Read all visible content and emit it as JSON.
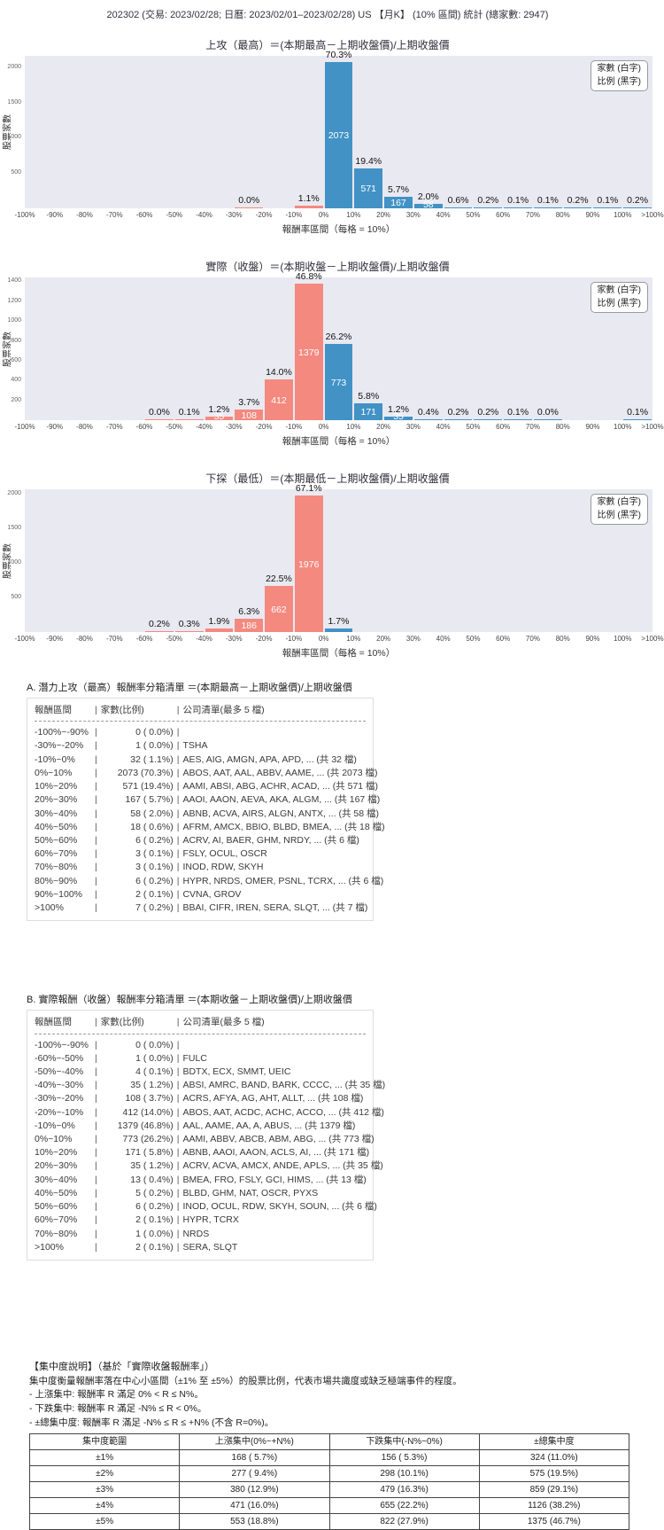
{
  "page_title": "202302 (交易: 2023/02/28; 日曆: 2023/02/01–2023/02/28) US 【月K】 (10% 區間) 統計 (總家數: 2947)",
  "colors": {
    "up_bar": "#4292c5",
    "down_bar": "#f4897f",
    "plot_bg": "#e9e9f1"
  },
  "legend": {
    "line1": "家數 (白字)",
    "line2": "比例 (黑字)"
  },
  "axis": {
    "ylabel": "股票家數",
    "xlabel": "報酬率區間（每格 = 10%）",
    "xticks": [
      "-100%",
      "-90%",
      "-80%",
      "-70%",
      "-60%",
      "-50%",
      "-40%",
      "-30%",
      "-20%",
      "-10%",
      "0%",
      "10%",
      "20%",
      "30%",
      "40%",
      "50%",
      "60%",
      "70%",
      "80%",
      "90%",
      "100%",
      ">100%"
    ],
    "bin_labels": [
      "-100%~-90%",
      "-90%~-80%",
      "-80%~-70%",
      "-70%~-60%",
      "-60%~-50%",
      "-50%~-40%",
      "-40%~-30%",
      "-30%~-20%",
      "-20%~-10%",
      "-10%~0%",
      "0%~10%",
      "10%~20%",
      "20%~30%",
      "30%~40%",
      "40%~50%",
      "50%~60%",
      "60%~70%",
      "70%~80%",
      "80%~90%",
      "90%~100%",
      ">100%"
    ]
  },
  "chart_data": [
    {
      "type": "bar",
      "title": "上攻（最高）＝(本期最高－上期收盤價)/上期收盤價",
      "ylim": [
        0,
        2160
      ],
      "yticks": [
        500,
        1000,
        1500,
        2000
      ],
      "values": [
        0,
        0,
        0,
        0,
        0,
        0,
        0,
        1,
        0,
        32,
        2073,
        571,
        167,
        58,
        18,
        6,
        3,
        3,
        6,
        2,
        7
      ],
      "bars": [
        {
          "i": 7,
          "v": 1,
          "pct": "0.0%"
        },
        {
          "i": 9,
          "v": 32,
          "pct": "1.1%"
        },
        {
          "i": 10,
          "v": 2073,
          "pct": "70.3%",
          "count": "2073"
        },
        {
          "i": 11,
          "v": 571,
          "pct": "19.4%",
          "count": "571"
        },
        {
          "i": 12,
          "v": 167,
          "pct": "5.7%",
          "count": "167"
        },
        {
          "i": 13,
          "v": 58,
          "pct": "2.0%",
          "count": "58"
        },
        {
          "i": 14,
          "v": 18,
          "pct": "0.6%"
        },
        {
          "i": 15,
          "v": 6,
          "pct": "0.2%"
        },
        {
          "i": 16,
          "v": 3,
          "pct": "0.1%"
        },
        {
          "i": 17,
          "v": 3,
          "pct": "0.1%"
        },
        {
          "i": 18,
          "v": 6,
          "pct": "0.2%"
        },
        {
          "i": 19,
          "v": 2,
          "pct": "0.1%"
        },
        {
          "i": 20,
          "v": 7,
          "pct": "0.2%"
        }
      ]
    },
    {
      "type": "bar",
      "title": "實際（收盤）＝(本期收盤－上期收盤價)/上期收盤價",
      "ylim": [
        0,
        1440
      ],
      "yticks": [
        200,
        400,
        600,
        800,
        1000,
        1200,
        1400
      ],
      "values": [
        0,
        0,
        0,
        0,
        1,
        4,
        35,
        108,
        412,
        1379,
        773,
        171,
        35,
        13,
        5,
        6,
        2,
        1,
        0,
        0,
        2
      ],
      "bars": [
        {
          "i": 4,
          "v": 1,
          "pct": "0.0%"
        },
        {
          "i": 5,
          "v": 4,
          "pct": "0.1%"
        },
        {
          "i": 6,
          "v": 35,
          "pct": "1.2%",
          "count": "35"
        },
        {
          "i": 7,
          "v": 108,
          "pct": "3.7%",
          "count": "108"
        },
        {
          "i": 8,
          "v": 412,
          "pct": "14.0%",
          "count": "412"
        },
        {
          "i": 9,
          "v": 1379,
          "pct": "46.8%",
          "count": "1379"
        },
        {
          "i": 10,
          "v": 773,
          "pct": "26.2%",
          "count": "773"
        },
        {
          "i": 11,
          "v": 171,
          "pct": "5.8%",
          "count": "171"
        },
        {
          "i": 12,
          "v": 35,
          "pct": "1.2%",
          "count": "35"
        },
        {
          "i": 13,
          "v": 13,
          "pct": "0.4%"
        },
        {
          "i": 14,
          "v": 5,
          "pct": "0.2%"
        },
        {
          "i": 15,
          "v": 6,
          "pct": "0.2%"
        },
        {
          "i": 16,
          "v": 2,
          "pct": "0.1%"
        },
        {
          "i": 17,
          "v": 1,
          "pct": "0.0%"
        },
        {
          "i": 20,
          "v": 2,
          "pct": "0.1%"
        }
      ]
    },
    {
      "type": "bar",
      "title": "下探（最低）＝(本期最低－上期收盤價)/上期收盤價",
      "ylim": [
        0,
        2060
      ],
      "yticks": [
        500,
        1000,
        1500,
        2000
      ],
      "values": [
        0,
        0,
        0,
        0,
        6,
        9,
        56,
        186,
        662,
        1976,
        50,
        0,
        0,
        0,
        0,
        0,
        0,
        0,
        0,
        0,
        0
      ],
      "bars": [
        {
          "i": 4,
          "v": 6,
          "pct": "0.2%"
        },
        {
          "i": 5,
          "v": 9,
          "pct": "0.3%"
        },
        {
          "i": 6,
          "v": 56,
          "pct": "1.9%"
        },
        {
          "i": 7,
          "v": 186,
          "pct": "6.3%",
          "count": "186"
        },
        {
          "i": 8,
          "v": 662,
          "pct": "22.5%",
          "count": "662"
        },
        {
          "i": 9,
          "v": 1976,
          "pct": "67.1%",
          "count": "1976"
        },
        {
          "i": 10,
          "v": 50,
          "pct": "1.7%"
        }
      ]
    }
  ],
  "list_a": {
    "title": "A. 潛力上攻（最高）報酬率分箱清單 ＝(本期最高－上期收盤價)/上期收盤價",
    "header": [
      "報酬區間",
      "家數(比例)",
      "公司清單(最多 5 檔)"
    ],
    "rows": [
      [
        "-100%~-90%",
        "0 ( 0.0%)",
        ""
      ],
      [
        "-30%~-20%",
        "1 ( 0.0%)",
        "TSHA"
      ],
      [
        "-10%~0%",
        "32 ( 1.1%)",
        "AES, AIG, AMGN, APA, APD, ... (共 32 檔)"
      ],
      [
        "0%~10%",
        "2073 (70.3%)",
        "ABOS, AAT, AAL, ABBV, AAME, ... (共 2073 檔)"
      ],
      [
        "10%~20%",
        "571 (19.4%)",
        "AAMI, ABSI, ABG, ACHR, ACAD, ... (共 571 檔)"
      ],
      [
        "20%~30%",
        "167 ( 5.7%)",
        "AAOI, AAON, AEVA, AKA, ALGM, ... (共 167 檔)"
      ],
      [
        "30%~40%",
        "58 ( 2.0%)",
        "ABNB, ACVA, AIRS, ALGN, ANTX, ... (共 58 檔)"
      ],
      [
        "40%~50%",
        "18 ( 0.6%)",
        "AFRM, AMCX, BBIO, BLBD, BMEA, ... (共 18 檔)"
      ],
      [
        "50%~60%",
        "6 ( 0.2%)",
        "ACRV, AI, BAER, GHM, NRDY, ... (共 6 檔)"
      ],
      [
        "60%~70%",
        "3 ( 0.1%)",
        "FSLY, OCUL, OSCR"
      ],
      [
        "70%~80%",
        "3 ( 0.1%)",
        "INOD, RDW, SKYH"
      ],
      [
        "80%~90%",
        "6 ( 0.2%)",
        "HYPR, NRDS, OMER, PSNL, TCRX, ... (共 6 檔)"
      ],
      [
        "90%~100%",
        "2 ( 0.1%)",
        "CVNA, GROV"
      ],
      [
        ">100%",
        "7 ( 0.2%)",
        "BBAI, CIFR, IREN, SERA, SLQT, ... (共 7 檔)"
      ]
    ]
  },
  "list_b": {
    "title": "B. 實際報酬（收盤）報酬率分箱清單 ＝(本期收盤－上期收盤價)/上期收盤價",
    "header": [
      "報酬區間",
      "家數(比例)",
      "公司清單(最多 5 檔)"
    ],
    "rows": [
      [
        "-100%~-90%",
        "0 ( 0.0%)",
        ""
      ],
      [
        "-60%~-50%",
        "1 ( 0.0%)",
        "FULC"
      ],
      [
        "-50%~-40%",
        "4 ( 0.1%)",
        "BDTX, ECX, SMMT, UEIC"
      ],
      [
        "-40%~-30%",
        "35 ( 1.2%)",
        "ABSI, AMRC, BAND, BARK, CCCC, ... (共 35 檔)"
      ],
      [
        "-30%~-20%",
        "108 ( 3.7%)",
        "ACRS, AFYA, AG, AHT, ALLT, ... (共 108 檔)"
      ],
      [
        "-20%~-10%",
        "412 (14.0%)",
        "ABOS, AAT, ACDC, ACHC, ACCO, ... (共 412 檔)"
      ],
      [
        "-10%~0%",
        "1379 (46.8%)",
        "AAL, AAME, AA, A, ABUS, ... (共 1379 檔)"
      ],
      [
        "0%~10%",
        "773 (26.2%)",
        "AAMI, ABBV, ABCB, ABM, ABG, ... (共 773 檔)"
      ],
      [
        "10%~20%",
        "171 ( 5.8%)",
        "ABNB, AAOI, AAON, ACLS, AI, ... (共 171 檔)"
      ],
      [
        "20%~30%",
        "35 ( 1.2%)",
        "ACRV, ACVA, AMCX, ANDE, APLS, ... (共 35 檔)"
      ],
      [
        "30%~40%",
        "13 ( 0.4%)",
        "BMEA, FRO, FSLY, GCI, HIMS, ... (共 13 檔)"
      ],
      [
        "40%~50%",
        "5 ( 0.2%)",
        "BLBD, GHM, NAT, OSCR, PYXS"
      ],
      [
        "50%~60%",
        "6 ( 0.2%)",
        "INOD, OCUL, RDW, SKYH, SOUN, ... (共 6 檔)"
      ],
      [
        "60%~70%",
        "2 ( 0.1%)",
        "HYPR, TCRX"
      ],
      [
        "70%~80%",
        "1 ( 0.0%)",
        "NRDS"
      ],
      [
        ">100%",
        "2 ( 0.1%)",
        "SERA, SLQT"
      ]
    ]
  },
  "concentration": {
    "heading": "【集中度說明】（基於「實際收盤報酬率」）",
    "desc": "集中度衡量報酬率落在中心小區間（±1% 至 ±5%）的股票比例，代表市場共識度或缺乏極端事件的程度。",
    "bullets": [
      "- 上漲集中: 報酬率 R 滿足 0% < R ≤ N%。",
      "- 下跌集中: 報酬率 R 滿足 -N% ≤ R < 0%。",
      "- ±總集中度: 報酬率 R 滿足 -N% ≤ R ≤ +N% (不含 R=0%)。"
    ],
    "table": {
      "headers": [
        "集中度範圍",
        "上漲集中(0%~+N%)",
        "下跌集中(-N%~0%)",
        "±總集中度"
      ],
      "rows": [
        [
          "±1%",
          "168 ( 5.7%)",
          "156 ( 5.3%)",
          "324 (11.0%)"
        ],
        [
          "±2%",
          "277 ( 9.4%)",
          "298 (10.1%)",
          "575 (19.5%)"
        ],
        [
          "±3%",
          "380 (12.9%)",
          "479 (16.3%)",
          "859 (29.1%)"
        ],
        [
          "±4%",
          "471 (16.0%)",
          "655 (22.2%)",
          "1126 (38.2%)"
        ],
        [
          "±5%",
          "553 (18.8%)",
          "822 (27.9%)",
          "1375 (46.7%)"
        ]
      ]
    }
  }
}
